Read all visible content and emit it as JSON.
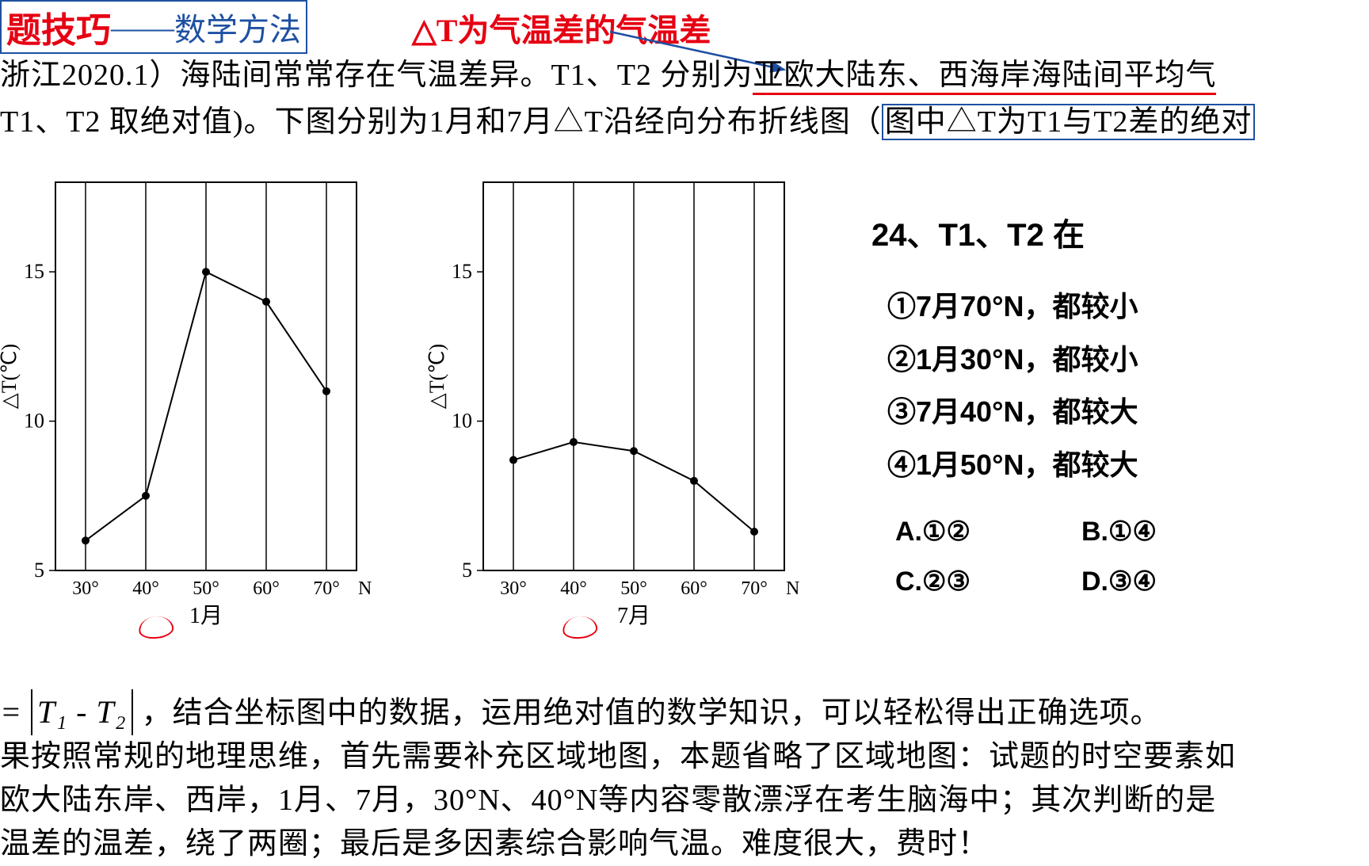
{
  "header": {
    "red": "题技巧",
    "dash": "——",
    "blue": "数学方法"
  },
  "title_red": "△T为气温差的气温差",
  "question_line1a": "浙江2020.1）海陆间常常存在气温差异。T1、T2 分别为",
  "question_line1b": "亚欧大陆东、西海岸海陆间平均气",
  "question_line2a": "T1、T2 取绝对值)。下图分别为1月和7月△T沿经向分布折线图（",
  "question_line2b": "图中△T为T1与T2差的绝对",
  "chart1": {
    "type": "line",
    "xlabel_items": [
      "30°",
      "40°",
      "50°",
      "60°",
      "70°",
      "N"
    ],
    "month_label": "1月",
    "ylabel": "△T(℃)",
    "yticks": [
      5,
      10,
      15
    ],
    "ylim": [
      5,
      18
    ],
    "points_x": [
      30,
      40,
      50,
      60,
      70
    ],
    "points_y": [
      6.0,
      7.5,
      15.0,
      14.0,
      11.0
    ],
    "bg": "#ffffff",
    "axis_color": "#000000",
    "line_width": 2,
    "marker_radius": 5
  },
  "chart2": {
    "type": "line",
    "xlabel_items": [
      "30°",
      "40°",
      "50°",
      "60°",
      "70°",
      "N"
    ],
    "month_label": "7月",
    "ylabel": "△T(℃)",
    "yticks": [
      5,
      10,
      15
    ],
    "ylim": [
      5,
      18
    ],
    "points_x": [
      30,
      40,
      50,
      60,
      70
    ],
    "points_y": [
      8.7,
      9.3,
      9.0,
      8.0,
      6.3
    ],
    "bg": "#ffffff",
    "axis_color": "#000000",
    "line_width": 2,
    "marker_radius": 5
  },
  "q24": {
    "title": "24、T1、T2 在",
    "opt1": "①7月70°N，都较小",
    "opt2": "②1月30°N，都较小",
    "opt3": "③7月40°N，都较大",
    "opt4": "④1月50°N，都较大",
    "A": "A.①②",
    "B": "B.①④",
    "C": "C.②③",
    "D": "D.③④"
  },
  "bottom": {
    "formula_prefix": "=",
    "formula_inner": "T₁ - T₂",
    "line1_rest": "，结合坐标图中的数据，运用绝对值的数学知识，可以轻松得出正确选项。",
    "line2": "果按照常规的地理思维，首先需要补充区域地图，本题省略了区域地图：试题的时空要素如",
    "line3": "欧大陆东岸、西岸，1月、7月，30°N、40°N等内容零散漂浮在考生脑海中；其次判断的是",
    "line4": "温差的温差，绕了两圈；最后是多因素综合影响气温。难度很大，费时！"
  }
}
